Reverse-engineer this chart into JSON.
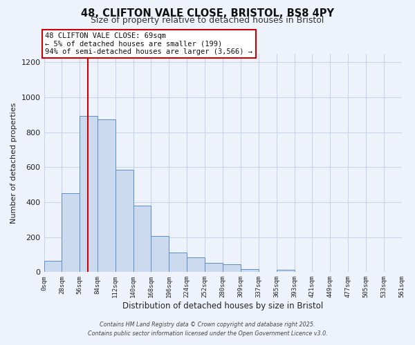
{
  "title": "48, CLIFTON VALE CLOSE, BRISTOL, BS8 4PY",
  "subtitle": "Size of property relative to detached houses in Bristol",
  "xlabel": "Distribution of detached houses by size in Bristol",
  "ylabel": "Number of detached properties",
  "bar_values": [
    65,
    450,
    895,
    875,
    585,
    380,
    205,
    110,
    85,
    52,
    45,
    18,
    0,
    15,
    0,
    0,
    0,
    0,
    0,
    0
  ],
  "bin_edges": [
    0,
    28,
    56,
    84,
    112,
    140,
    168,
    196,
    224,
    252,
    280,
    309,
    337,
    365,
    393,
    421,
    449,
    477,
    505,
    533,
    561
  ],
  "tick_labels": [
    "0sqm",
    "28sqm",
    "56sqm",
    "84sqm",
    "112sqm",
    "140sqm",
    "168sqm",
    "196sqm",
    "224sqm",
    "252sqm",
    "280sqm",
    "309sqm",
    "337sqm",
    "365sqm",
    "393sqm",
    "421sqm",
    "449sqm",
    "477sqm",
    "505sqm",
    "533sqm",
    "561sqm"
  ],
  "bar_color": "#ccdaf0",
  "bar_edge_color": "#5b8dc8",
  "grid_color": "#c8d4e8",
  "bg_color": "#eef2fa",
  "vline_x": 69,
  "vline_color": "#cc0000",
  "annotation_title": "48 CLIFTON VALE CLOSE: 69sqm",
  "annotation_line1": "← 5% of detached houses are smaller (199)",
  "annotation_line2": "94% of semi-detached houses are larger (3,566) →",
  "ylim": [
    0,
    1250
  ],
  "yticks": [
    0,
    200,
    400,
    600,
    800,
    1000,
    1200
  ],
  "footnote1": "Contains HM Land Registry data © Crown copyright and database right 2025.",
  "footnote2": "Contains public sector information licensed under the Open Government Licence v3.0."
}
